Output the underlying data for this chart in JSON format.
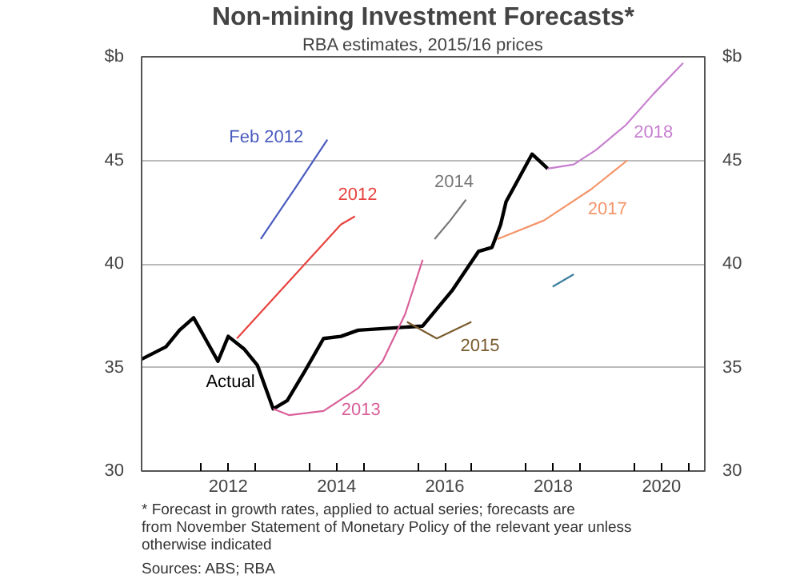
{
  "chart_data": {
    "type": "line",
    "title": "Non-mining Investment Forecasts*",
    "subtitle": "RBA estimates, 2015/16 prices",
    "xlim": [
      2010.4,
      2020.8
    ],
    "xticks": [
      {
        "value": 2011.5,
        "label": null
      },
      {
        "value": 2012,
        "label": "2012"
      },
      {
        "value": 2012.5,
        "label": null
      },
      {
        "value": 2013.5,
        "label": null
      },
      {
        "value": 2014,
        "label": "2014"
      },
      {
        "value": 2014.5,
        "label": null
      },
      {
        "value": 2015.5,
        "label": null
      },
      {
        "value": 2016,
        "label": "2016"
      },
      {
        "value": 2016.5,
        "label": null
      },
      {
        "value": 2017.5,
        "label": null
      },
      {
        "value": 2018,
        "label": "2018"
      },
      {
        "value": 2018.5,
        "label": null
      },
      {
        "value": 2019.5,
        "label": null
      },
      {
        "value": 2020,
        "label": "2020"
      },
      {
        "value": 2020.5,
        "label": null
      }
    ],
    "ylim": [
      30,
      50
    ],
    "yticks": [
      30,
      35,
      40,
      45,
      {
        "value": 50,
        "label": "$b"
      }
    ],
    "y2lim": [
      30,
      50
    ],
    "y2ticks": [
      30,
      35,
      40,
      45,
      {
        "value": 50,
        "label": "$b"
      }
    ],
    "grid": "y",
    "series": [
      {
        "name": "Actual",
        "color": "#000000",
        "x": [
          2010.4,
          2010.85,
          2011.1,
          2011.36,
          2011.81,
          2012.0,
          2012.29,
          2012.54,
          2012.83,
          2013.09,
          2013.41,
          2013.76,
          2014.08,
          2014.4,
          2015.59,
          2016.13,
          2016.62,
          2016.87,
          2017.03,
          2017.13,
          2017.61,
          2017.9
        ],
        "values": [
          35.4,
          36.0,
          36.8,
          37.4,
          35.3,
          36.5,
          35.9,
          35.1,
          33.0,
          33.4,
          34.8,
          36.4,
          36.5,
          36.8,
          37.0,
          38.7,
          40.6,
          40.8,
          41.9,
          43.0,
          45.3,
          44.6
        ]
      },
      {
        "name": "Feb 2012",
        "color": "#4a5bbf",
        "x": [
          2012.6,
          2013.22,
          2013.83
        ],
        "values": [
          41.2,
          43.6,
          46.0
        ]
      },
      {
        "name": "2012",
        "color": "#e8433f",
        "x": [
          2012.16,
          2014.08,
          2014.34
        ],
        "values": [
          36.4,
          41.9,
          42.3
        ]
      },
      {
        "name": "2013",
        "color": "#d9609a",
        "x": [
          2012.83,
          2013.12,
          2013.76,
          2014.4,
          2014.85,
          2015.27,
          2015.59
        ],
        "values": [
          33.0,
          32.7,
          32.9,
          34.0,
          35.3,
          37.6,
          40.2
        ]
      },
      {
        "name": "2014",
        "color": "#777777",
        "x": [
          2015.81,
          2016.1,
          2016.39
        ],
        "values": [
          41.2,
          42.1,
          43.1
        ]
      },
      {
        "name": "2015",
        "color": "#7a5c2e",
        "x": [
          2015.3,
          2015.85,
          2016.49
        ],
        "values": [
          37.2,
          36.4,
          37.2
        ]
      },
      {
        "color": "#3d7fa0",
        "x": [
          2017.99,
          2018.38
        ],
        "values": [
          38.9,
          39.5
        ]
      },
      {
        "name": "2017",
        "color": "#f4956a",
        "x": [
          2016.97,
          2017.83,
          2018.7,
          2019.37
        ],
        "values": [
          41.2,
          42.1,
          43.6,
          45.0
        ]
      },
      {
        "name": "2018",
        "color": "#c77fd0",
        "x": [
          2017.9,
          2018.38,
          2018.79,
          2019.34,
          2019.85,
          2020.4
        ],
        "values": [
          44.6,
          44.8,
          45.5,
          46.7,
          48.2,
          49.7
        ]
      }
    ],
    "annotations": [
      "*     Forecast in growth rates, applied to actual series; forecasts are from November Statement of Monetary Policy of the relevant year unless otherwise indicated",
      "Sources:  ABS; RBA"
    ]
  }
}
